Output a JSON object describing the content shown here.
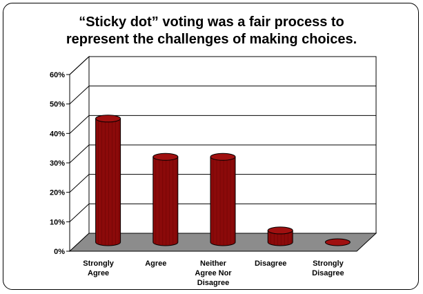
{
  "chart_data": {
    "type": "bar",
    "title_lines": [
      "“Sticky dot” voting was a fair process to",
      "represent the challenges of making choices."
    ],
    "categories": [
      [
        "Strongly",
        "Agree"
      ],
      [
        "Agree"
      ],
      [
        "Neither",
        "Agree Nor",
        "Disagree"
      ],
      [
        "Disagree"
      ],
      [
        "Strongly",
        "Disagree"
      ]
    ],
    "values": [
      0.42,
      0.29,
      0.29,
      0.04,
      0.0
    ],
    "yticks": [
      "0%",
      "10%",
      "20%",
      "30%",
      "40%",
      "50%",
      "60%"
    ],
    "ylim": [
      0,
      0.6
    ],
    "grid": true,
    "legend": false,
    "colors": {
      "bar": "#8b0a0a",
      "bar_dark": "#5a0000",
      "bar_top": "#a01010",
      "floor": "#8c8c8c",
      "wall": "#ffffff"
    }
  }
}
